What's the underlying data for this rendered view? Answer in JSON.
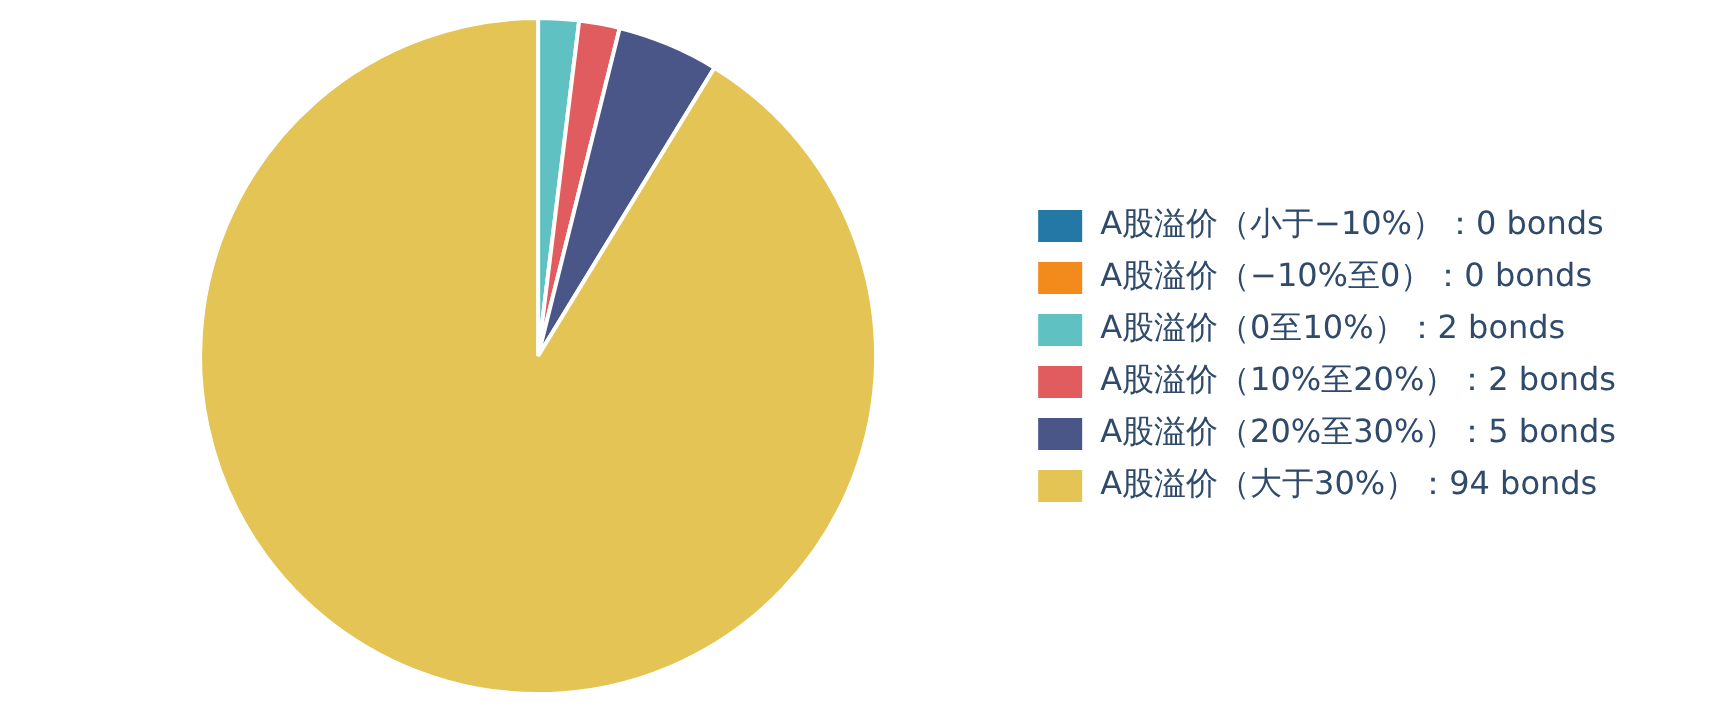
{
  "chart_data": {
    "type": "pie",
    "categories": [
      "A股溢价（小于−10%）：0 bonds",
      "A股溢价（−10%至0）：0 bonds",
      "A股溢价（0至10%）：2 bonds",
      "A股溢价（10%至20%）：2 bonds",
      "A股溢价（20%至30%）：5 bonds",
      "A股溢价（大于30%）：94 bonds"
    ],
    "values": [
      0,
      0,
      2,
      2,
      5,
      94
    ],
    "colors": [
      "#2378a6",
      "#f28a1c",
      "#5fc1c1",
      "#e05c5e",
      "#4a5688",
      "#e3c455"
    ],
    "legend": "right"
  }
}
